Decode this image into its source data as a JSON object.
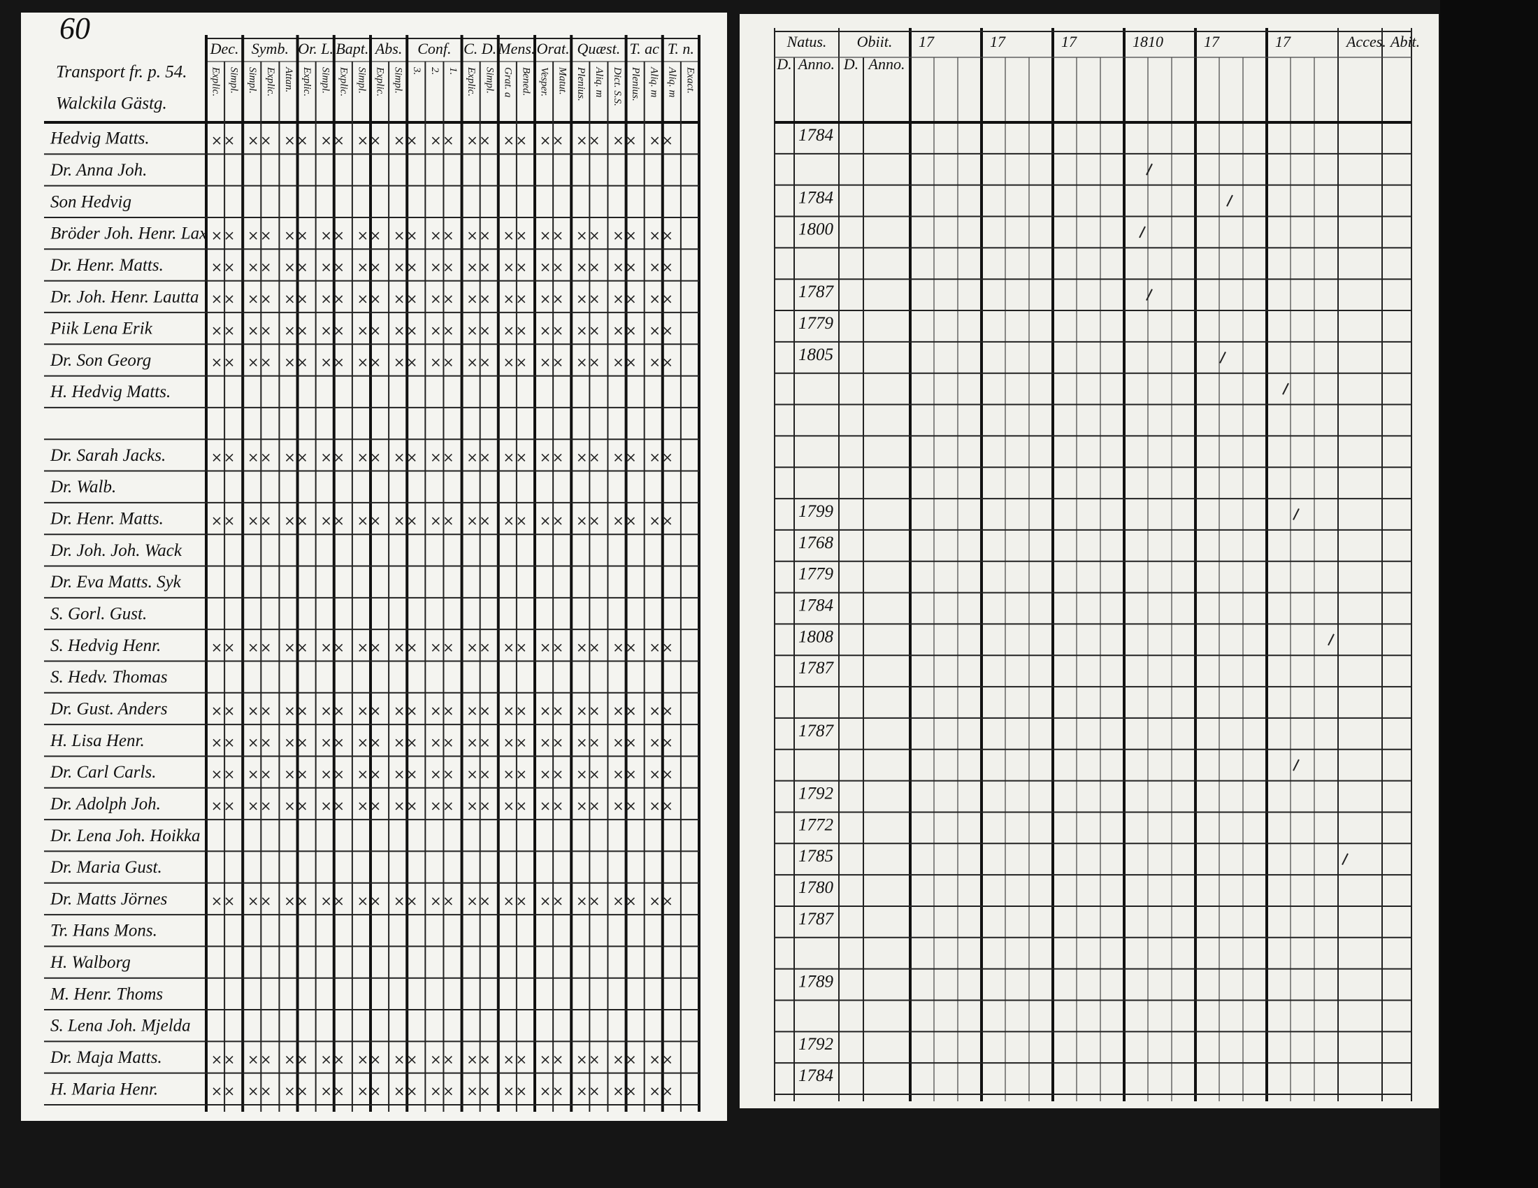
{
  "page_number": "60",
  "left_page": {
    "notes": [
      "Transport fr. p. 54.",
      "Walckila Gästg."
    ],
    "columns": [
      {
        "title": "Dec.",
        "subtitles": [
          "Explic.",
          "Simpl."
        ]
      },
      {
        "title": "Symb.",
        "subtitles": [
          "Simpl.",
          "Explic.",
          "Attan."
        ]
      },
      {
        "title": "Or. L.",
        "subtitles": [
          "Explic.",
          "Simpl."
        ]
      },
      {
        "title": "Bapt.",
        "subtitles": [
          "Explic.",
          "Simpl."
        ]
      },
      {
        "title": "Abs.",
        "subtitles": [
          "Explic.",
          "Simpl."
        ]
      },
      {
        "title": "Conf.",
        "subtitles": [
          "3.",
          "2.",
          "1."
        ]
      },
      {
        "title": "C. D.",
        "subtitles": [
          "Explic.",
          "Simpl."
        ]
      },
      {
        "title": "Mens.",
        "subtitles": [
          "Grat. a",
          "Bened."
        ]
      },
      {
        "title": "Orat.",
        "subtitles": [
          "Vesper.",
          "Matut."
        ]
      },
      {
        "title": "Quæst.",
        "subtitles": [
          "Plenius.",
          "Aliq. m",
          "Dict. S.S."
        ]
      },
      {
        "title": "T. ac",
        "subtitles": [
          "Plenius.",
          "Aliq. m"
        ]
      },
      {
        "title": "T. n.",
        "subtitles": [
          "Aliq. m",
          "Exact."
        ]
      }
    ],
    "names": [
      "Hedvig Matts.",
      "Dr. Anna Joh.",
      "Son Hedvig",
      "Bröder Joh. Henr. Lax",
      "Dr. Henr. Matts.",
      "Dr. Joh. Henr. Lautta",
      "Piik Lena Erik",
      "Dr. Son Georg",
      "H. Hedvig Matts.",
      "Dr. Sarah Jacks.",
      "Dr. Walb.",
      "Dr. Henr. Matts.",
      "Dr. Joh. Joh. Wack",
      "Dr. Eva Matts. Syk",
      "S. Gorl. Gust.",
      "S. Hedvig Henr.",
      "S. Hedv. Thomas",
      "Dr. Gust. Anders",
      "H. Lisa Henr.",
      "Dr. Carl Carls.",
      "Dr. Adolph Joh.",
      "Dr. Lena Joh. Hoikka",
      "Dr. Maria Gust.",
      "Dr. Matts Jörnes",
      "Tr. Hans Mons.",
      "H. Walborg",
      "M. Henr. Thoms",
      "S. Lena Joh. Mjelda",
      "Dr. Maja Matts.",
      "H. Maria Henr."
    ]
  },
  "right_page": {
    "columns": [
      {
        "title": "Natus.",
        "subtitles": [
          "D.",
          "Anno."
        ]
      },
      {
        "title": "Obiit.",
        "subtitles": [
          "D.",
          "Anno."
        ]
      },
      {
        "title": "17"
      },
      {
        "title": "17"
      },
      {
        "title": "17"
      },
      {
        "title": "1810"
      },
      {
        "title": "17"
      },
      {
        "title": "17"
      },
      {
        "title": "Acces."
      },
      {
        "title": "Abit."
      }
    ],
    "years": [
      "1784",
      "1784",
      "1800",
      "1787",
      "1779",
      "1805",
      "1799",
      "1768",
      "1779",
      "1784",
      "1808",
      "1787",
      "1787",
      "1792",
      "1772",
      "1785",
      "1780",
      "1787",
      "1789",
      "1792",
      "1784"
    ]
  }
}
